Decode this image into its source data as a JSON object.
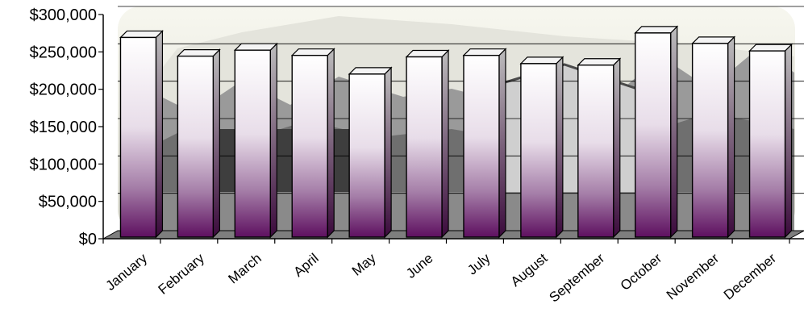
{
  "chart_data": {
    "type": "bar",
    "title": "",
    "xlabel": "",
    "ylabel": "",
    "categories": [
      "January",
      "February",
      "March",
      "April",
      "May",
      "June",
      "July",
      "August",
      "September",
      "October",
      "November",
      "December"
    ],
    "values": [
      265000,
      240000,
      248000,
      241000,
      216000,
      239000,
      241000,
      230000,
      228000,
      271000,
      257000,
      247000
    ],
    "ylim": [
      0,
      300000
    ],
    "yticks": [
      0,
      50000,
      100000,
      150000,
      200000,
      250000,
      300000
    ],
    "ytick_labels": [
      "$0",
      "$50,000",
      "$100,000",
      "$150,000",
      "$200,000",
      "$250,000",
      "$300,000"
    ],
    "grid": true,
    "legend": "none",
    "colors": {
      "bar_top": "#ffffff",
      "bar_mid": "#d9c8dd",
      "bar_bottom": "#5e1060",
      "bar_outline": "#000000",
      "floor": "#8a8a8a",
      "backdrop_sky": "#f2f2ea",
      "backdrop_trees": "#6f6f6f",
      "backdrop_building": "#3e3e3e"
    }
  }
}
